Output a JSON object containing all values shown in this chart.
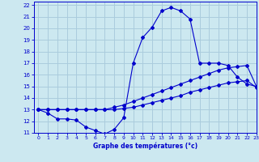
{
  "xlabel": "Graphe des températures (°c)",
  "background_color": "#cce8f0",
  "grid_color": "#aaccdd",
  "line_color": "#0000cc",
  "xlim": [
    -0.5,
    23
  ],
  "ylim": [
    11,
    22.3
  ],
  "xticks": [
    0,
    1,
    2,
    3,
    4,
    5,
    6,
    7,
    8,
    9,
    10,
    11,
    12,
    13,
    14,
    15,
    16,
    17,
    18,
    19,
    20,
    21,
    22,
    23
  ],
  "yticks": [
    11,
    12,
    13,
    14,
    15,
    16,
    17,
    18,
    19,
    20,
    21,
    22
  ],
  "curve1_x": [
    0,
    1,
    2,
    3,
    4,
    5,
    6,
    7,
    8,
    9,
    10,
    11,
    12,
    13,
    14,
    15,
    16,
    17,
    18,
    19,
    20,
    21,
    22,
    23
  ],
  "curve1_y": [
    13.0,
    12.7,
    12.2,
    12.2,
    12.1,
    11.5,
    11.2,
    10.9,
    11.3,
    12.3,
    17.0,
    19.2,
    20.1,
    21.5,
    21.8,
    21.5,
    20.8,
    17.0,
    17.0,
    17.0,
    16.8,
    15.8,
    15.2,
    15.0
  ],
  "curve2_x": [
    0,
    1,
    2,
    3,
    4,
    5,
    6,
    7,
    8,
    9,
    10,
    11,
    12,
    13,
    14,
    15,
    16,
    17,
    18,
    19,
    20,
    21,
    22,
    23
  ],
  "curve2_y": [
    13.0,
    13.0,
    13.0,
    13.0,
    13.0,
    13.0,
    13.0,
    13.0,
    13.2,
    13.4,
    13.7,
    14.0,
    14.3,
    14.6,
    14.9,
    15.2,
    15.5,
    15.8,
    16.1,
    16.4,
    16.6,
    16.7,
    16.8,
    15.0
  ],
  "curve3_x": [
    0,
    1,
    2,
    3,
    4,
    5,
    6,
    7,
    8,
    9,
    10,
    11,
    12,
    13,
    14,
    15,
    16,
    17,
    18,
    19,
    20,
    21,
    22,
    23
  ],
  "curve3_y": [
    13.0,
    13.0,
    13.0,
    13.0,
    13.0,
    13.0,
    13.0,
    13.0,
    13.0,
    13.1,
    13.2,
    13.4,
    13.6,
    13.8,
    14.0,
    14.2,
    14.5,
    14.7,
    14.9,
    15.1,
    15.3,
    15.4,
    15.5,
    14.9
  ]
}
